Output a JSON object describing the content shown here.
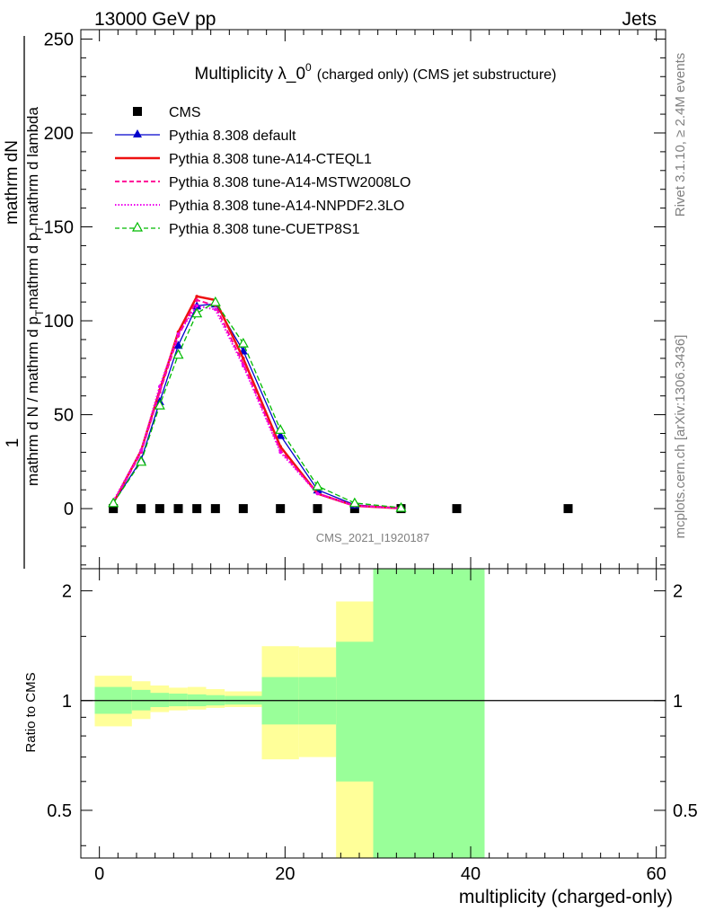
{
  "header": {
    "left": "13000 GeV pp",
    "right": "Jets"
  },
  "side_text": {
    "rivet": "Rivet 3.1.10, ≥ 2.4M events",
    "mcplots": "mcplots.cern.ch [arXiv:1306.3436]"
  },
  "watermark": "CMS_2021_I1920187",
  "colors": {
    "cms": "#000000",
    "default": "#0000cc",
    "cteql1": "#ee1111",
    "mstw": "#ff0099",
    "nnpdf": "#ee00ee",
    "cuetp8s1": "#00bb00",
    "band_inner": "#99ff99",
    "band_outer": "#ffff99"
  },
  "chart_data": [
    {
      "type": "line",
      "title": "Multiplicity λ_0^0 (charged only) (CMS jet substructure)",
      "title_main": "Multiplicity λ_0",
      "title_sup": "0",
      "title_tail": "(charged only) (CMS jet substructure)",
      "ylabel_num": "1",
      "ylabel_frac_top": "mathrm dN",
      "ylabel_frac_bottom": "mathrm d N / mathrm d p_T mathrm d p_T mathrm d lambda",
      "ylabel_parts": [
        "mathrm d N / mathrm d p",
        "mathrm d p",
        "mathrm d lambda"
      ],
      "ylabel_sub": "T",
      "xlim": [
        -2,
        61
      ],
      "ylim": [
        -32,
        255
      ],
      "yticks": [
        0,
        50,
        100,
        150,
        200,
        250
      ],
      "ytick_labels": [
        "0",
        "50",
        "100",
        "150",
        "200",
        "250"
      ],
      "legend_position": "top-left",
      "series": [
        {
          "name": "CMS",
          "key": "cms",
          "style": "marker-square",
          "x": [
            1.5,
            4.5,
            6.5,
            8.5,
            10.5,
            12.5,
            15.5,
            19.5,
            23.5,
            27.5,
            32.5,
            38.5,
            50.5
          ],
          "y": [
            0,
            0,
            0,
            0,
            0,
            0,
            0,
            0,
            0,
            0,
            0,
            0,
            0
          ]
        },
        {
          "name": "Pythia 8.308 default",
          "key": "default",
          "style": "solid-triangle",
          "x": [
            1.5,
            4.5,
            6.5,
            8.5,
            10.5,
            12.5,
            15.5,
            19.5,
            23.5,
            27.5,
            32.5
          ],
          "y": [
            3,
            26,
            57,
            87,
            108,
            109,
            84,
            39,
            10,
            2,
            0.3
          ]
        },
        {
          "name": "Pythia 8.308 tune-A14-CTEQL1",
          "key": "cteql1",
          "style": "solid",
          "x": [
            1.5,
            4.5,
            6.5,
            8.5,
            10.5,
            12.5,
            15.5,
            19.5,
            23.5,
            27.5,
            32.5
          ],
          "y": [
            3,
            31,
            63,
            94,
            113,
            111,
            80,
            33,
            8,
            1.5,
            0.2
          ]
        },
        {
          "name": "Pythia 8.308 tune-A14-MSTW2008LO",
          "key": "mstw",
          "style": "dashed",
          "x": [
            1.5,
            4.5,
            6.5,
            8.5,
            10.5,
            12.5,
            15.5,
            19.5,
            23.5,
            27.5,
            32.5
          ],
          "y": [
            3,
            30,
            62,
            92,
            111,
            108,
            77,
            31,
            8,
            1.5,
            0.2
          ]
        },
        {
          "name": "Pythia 8.308 tune-A14-NNPDF2.3LO",
          "key": "nnpdf",
          "style": "dotted",
          "x": [
            1.5,
            4.5,
            6.5,
            8.5,
            10.5,
            12.5,
            15.5,
            19.5,
            23.5,
            27.5,
            32.5
          ],
          "y": [
            4,
            31,
            65,
            93,
            108,
            106,
            76,
            30,
            8,
            1.5,
            0.2
          ]
        },
        {
          "name": "Pythia 8.308 tune-CUETP8S1",
          "key": "cuetp8s1",
          "style": "dashed-open-triangle",
          "x": [
            1.5,
            4.5,
            6.5,
            8.5,
            10.5,
            12.5,
            15.5,
            19.5,
            23.5,
            27.5,
            32.5
          ],
          "y": [
            3,
            25,
            55,
            82,
            104,
            110,
            88,
            42,
            12,
            3,
            0.5
          ]
        }
      ]
    },
    {
      "type": "area",
      "title": "Ratio to CMS",
      "ylabel": "Ratio to CMS",
      "xlabel": "multiplicity (charged-only)",
      "xlim": [
        -2,
        61
      ],
      "ylim": [
        0.37,
        2.3
      ],
      "yscale": "log",
      "yticks": [
        0.5,
        1,
        2
      ],
      "ytick_labels": [
        "0.5",
        "1",
        "2"
      ],
      "xticks": [
        0,
        20,
        40,
        60
      ],
      "xtick_labels": [
        "0",
        "20",
        "40",
        "60"
      ],
      "reference_line": 1,
      "bins": [
        {
          "lo": -0.5,
          "hi": 3.5,
          "inner": [
            0.92,
            1.09
          ],
          "outer": [
            0.85,
            1.17
          ]
        },
        {
          "lo": 3.5,
          "hi": 5.5,
          "inner": [
            0.94,
            1.07
          ],
          "outer": [
            0.89,
            1.13
          ]
        },
        {
          "lo": 5.5,
          "hi": 7.5,
          "inner": [
            0.96,
            1.05
          ],
          "outer": [
            0.93,
            1.1
          ]
        },
        {
          "lo": 7.5,
          "hi": 9.5,
          "inner": [
            0.965,
            1.045
          ],
          "outer": [
            0.94,
            1.085
          ]
        },
        {
          "lo": 9.5,
          "hi": 11.5,
          "inner": [
            0.965,
            1.04
          ],
          "outer": [
            0.945,
            1.09
          ]
        },
        {
          "lo": 11.5,
          "hi": 13.5,
          "inner": [
            0.97,
            1.035
          ],
          "outer": [
            0.955,
            1.075
          ]
        },
        {
          "lo": 13.5,
          "hi": 17.5,
          "inner": [
            0.975,
            1.03
          ],
          "outer": [
            0.96,
            1.06
          ]
        },
        {
          "lo": 17.5,
          "hi": 21.5,
          "inner": [
            0.86,
            1.16
          ],
          "outer": [
            0.69,
            1.41
          ]
        },
        {
          "lo": 21.5,
          "hi": 25.5,
          "inner": [
            0.86,
            1.16
          ],
          "outer": [
            0.7,
            1.4
          ]
        },
        {
          "lo": 25.5,
          "hi": 29.5,
          "inner": [
            0.6,
            1.45
          ],
          "outer": [
            0.37,
            1.87
          ]
        },
        {
          "lo": 29.5,
          "hi": 41.5,
          "inner": [
            0.37,
            2.3
          ],
          "outer": [
            0.37,
            2.3
          ]
        }
      ]
    }
  ]
}
